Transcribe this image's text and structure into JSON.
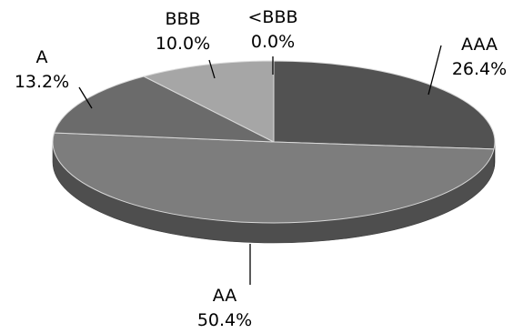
{
  "chart_data": {
    "type": "pie",
    "style": "3d",
    "slices": [
      {
        "label": "AAA",
        "value": 26.4,
        "value_label": "26.4%",
        "color": "#525252"
      },
      {
        "label": "AA",
        "value": 50.4,
        "value_label": "50.4%",
        "color": "#7d7d7d"
      },
      {
        "label": "A",
        "value": 13.2,
        "value_label": "13.2%",
        "color": "#6b6b6b"
      },
      {
        "label": "BBB",
        "value": 10.0,
        "value_label": "10.0%",
        "color": "#a6a6a6"
      },
      {
        "label": "<BBB",
        "value": 0.0,
        "value_label": "0.0%",
        "color": "#c8c8c8"
      }
    ],
    "legend": "none",
    "labels_outside": true
  }
}
